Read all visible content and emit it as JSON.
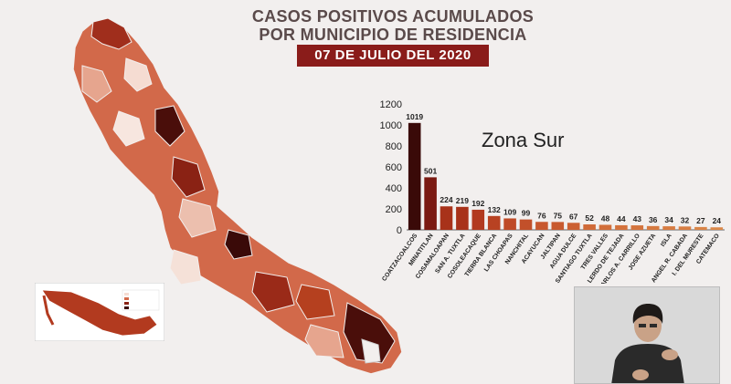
{
  "header": {
    "title_line1": "CASOS POSITIVOS ACUMULADOS",
    "title_line2": "POR MUNICIPIO DE RESIDENCIA",
    "date": "07 DE JULIO DEL 2020"
  },
  "chart_data": {
    "type": "bar",
    "title": "Zona Sur",
    "xlabel": "",
    "ylabel": "",
    "ylim": [
      0,
      1200
    ],
    "yticks": [
      0,
      200,
      400,
      600,
      800,
      1000,
      1200
    ],
    "grid": false,
    "categories": [
      "COATZACOALCOS",
      "MINATITLAN",
      "COSAMALOAPAN",
      "SAN A. TUXTLA",
      "COSOLEACAQUE",
      "TIERRA BLANCA",
      "LAS CHOAPAS",
      "NANCHITAL",
      "ACAYUCAN",
      "JALTIPAN",
      "AGUA DULCE",
      "SANTIAGO TUXTLA",
      "TRES VALLES",
      "LERDO DE TEJADA",
      "CARLOS A. CARRILLO",
      "JOSE AZUETA",
      "ISLA",
      "ANGEL R. CABADA",
      "I. DEL MURESTE",
      "CATEMACO"
    ],
    "values": [
      1019,
      501,
      224,
      219,
      192,
      132,
      109,
      99,
      76,
      75,
      67,
      52,
      48,
      44,
      43,
      36,
      34,
      32,
      27,
      24
    ],
    "colors": [
      "#3a0a08",
      "#7a1a12",
      "#a8321a",
      "#a8321a",
      "#b23a1f",
      "#b84222",
      "#bf4a26",
      "#c2502a",
      "#c8582e",
      "#c85a2f",
      "#cc6032",
      "#d06a38",
      "#d26e3a",
      "#d4723c",
      "#d4743d",
      "#d67a40",
      "#d77c42",
      "#d87e43",
      "#da8446",
      "#db8848"
    ]
  },
  "colors": {
    "accent": "#8a1c1a",
    "title_text": "#5a4a4a",
    "background": "#f2efee"
  }
}
